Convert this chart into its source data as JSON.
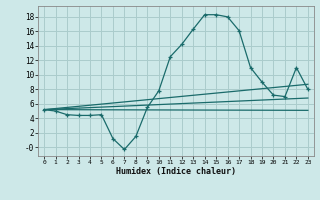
{
  "xlabel": "Humidex (Indice chaleur)",
  "background_color": "#cde8e8",
  "grid_color": "#aacccc",
  "line_color": "#1a6b6b",
  "xlim": [
    -0.5,
    23.5
  ],
  "ylim": [
    -1.2,
    19.5
  ],
  "xticks": [
    0,
    1,
    2,
    3,
    4,
    5,
    6,
    7,
    8,
    9,
    10,
    11,
    12,
    13,
    14,
    15,
    16,
    17,
    18,
    19,
    20,
    21,
    22,
    23
  ],
  "yticks": [
    0,
    2,
    4,
    6,
    8,
    10,
    12,
    14,
    16,
    18
  ],
  "ytick_labels": [
    "-0",
    "2",
    "4",
    "6",
    "8",
    "10",
    "12",
    "14",
    "16",
    "18"
  ],
  "main_line": {
    "x": [
      0,
      1,
      2,
      3,
      4,
      5,
      6,
      7,
      8,
      9,
      10,
      11,
      12,
      13,
      14,
      15,
      16,
      17,
      18,
      19,
      20,
      21,
      22,
      23
    ],
    "y": [
      5.2,
      5.0,
      4.5,
      4.4,
      4.4,
      4.5,
      1.2,
      -0.3,
      1.5,
      5.5,
      7.8,
      12.5,
      14.2,
      16.3,
      18.3,
      18.3,
      18.0,
      16.1,
      11.0,
      9.0,
      7.2,
      7.0,
      11.0,
      8.0
    ]
  },
  "line_flat": {
    "x": [
      0,
      23
    ],
    "y": [
      5.2,
      5.1
    ]
  },
  "line_mid": {
    "x": [
      0,
      23
    ],
    "y": [
      5.2,
      6.8
    ]
  },
  "line_top": {
    "x": [
      0,
      23
    ],
    "y": [
      5.2,
      8.7
    ]
  }
}
